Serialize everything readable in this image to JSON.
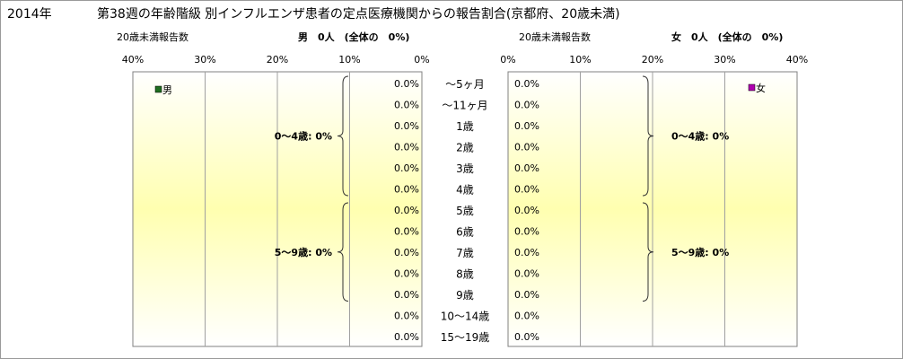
{
  "title": {
    "year": "2014年",
    "main": "第38週の年齢階級 別インフルエンザ患者の定点医療機関からの報告割合(京都府、20歳未満)"
  },
  "colors": {
    "male_legend": "#1f6e1f",
    "female_legend": "#b000b0",
    "grid": "#a0a0a0",
    "bg_top": "#ffffff",
    "bg_mid": "#ffffb0"
  },
  "chart_data": {
    "type": "bar",
    "orientation": "horizontal-population-pyramid",
    "categories": [
      "〜5ヶ月",
      "〜11ヶ月",
      "1歳",
      "2歳",
      "3歳",
      "4歳",
      "5歳",
      "6歳",
      "7歳",
      "8歳",
      "9歳",
      "10〜14歳",
      "15〜19歳"
    ],
    "xlim": [
      0,
      40
    ],
    "ticks": [
      0,
      10,
      20,
      30,
      40
    ],
    "tick_labels_left": [
      "40%",
      "30%",
      "20%",
      "10%",
      "0%"
    ],
    "tick_labels_right": [
      "0%",
      "10%",
      "20%",
      "30%",
      "40%"
    ],
    "grid": true,
    "series": [
      {
        "name": "男",
        "side": "left",
        "header_label": "20歳未満報告数",
        "header_total": "男　0人　(全体の　0%)",
        "values": [
          0,
          0,
          0,
          0,
          0,
          0,
          0,
          0,
          0,
          0,
          0,
          0,
          0
        ],
        "value_labels": [
          "0.0%",
          "0.0%",
          "0.0%",
          "0.0%",
          "0.0%",
          "0.0%",
          "0.0%",
          "0.0%",
          "0.0%",
          "0.0%",
          "0.0%",
          "0.0%",
          "0.0%"
        ],
        "group_labels": [
          "0〜4歳: 0%",
          "5〜9歳: 0%"
        ],
        "legend": "男"
      },
      {
        "name": "女",
        "side": "right",
        "header_label": "20歳未満報告数",
        "header_total": "女　0人　(全体の　0%)",
        "values": [
          0,
          0,
          0,
          0,
          0,
          0,
          0,
          0,
          0,
          0,
          0,
          0,
          0
        ],
        "value_labels": [
          "0.0%",
          "0.0%",
          "0.0%",
          "0.0%",
          "0.0%",
          "0.0%",
          "0.0%",
          "0.0%",
          "0.0%",
          "0.0%",
          "0.0%",
          "0.0%",
          "0.0%"
        ],
        "group_labels": [
          "0〜4歳: 0%",
          "5〜9歳: 0%"
        ],
        "legend": "女"
      }
    ]
  }
}
